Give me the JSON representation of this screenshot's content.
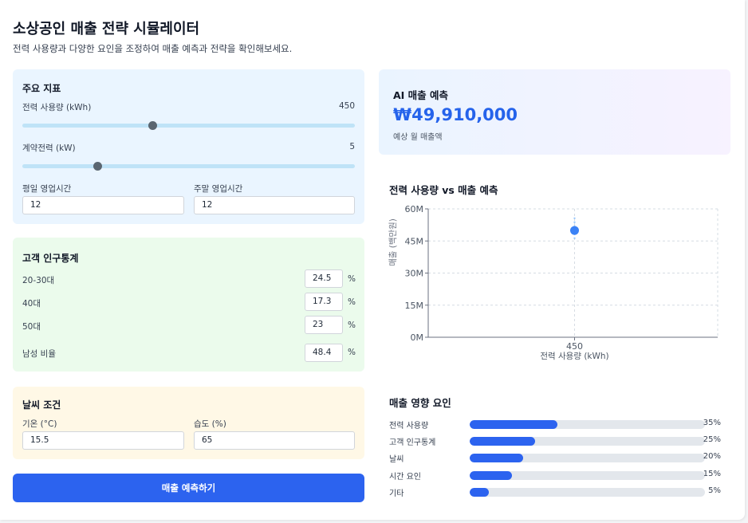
{
  "header": {
    "title": "소상공인 매출 전략 시뮬레이터",
    "subtitle": "전력 사용량과 다양한 요인을 조정하여 매출 예측과 전략을 확인해보세요."
  },
  "metrics": {
    "title": "주요 지표",
    "power_usage": {
      "label": "전력 사용량 (kWh)",
      "value": "450",
      "fraction": 0.39
    },
    "contract_power": {
      "label": "계약전력 (kW)",
      "value": "5",
      "fraction": 0.22
    },
    "weekday_hours": {
      "label": "평일 영업시간",
      "value": "12"
    },
    "weekend_hours": {
      "label": "주말 영업시간",
      "value": "12"
    }
  },
  "demographics": {
    "title": "고객 인구통계",
    "unit": "%",
    "rows": [
      {
        "label": "20-30대",
        "value": "24.5"
      },
      {
        "label": "40대",
        "value": "17.3"
      },
      {
        "label": "50대",
        "value": "23"
      },
      {
        "label": "남성 비율",
        "value": "48.4"
      }
    ]
  },
  "weather": {
    "title": "날씨 조건",
    "temperature": {
      "label": "기온 (°C)",
      "value": "15.5"
    },
    "humidity": {
      "label": "습도 (%)",
      "value": "65"
    }
  },
  "predict_button": "매출 예측하기",
  "ai": {
    "title": "AI 매출 예측",
    "value": "₩49,910,000",
    "subtitle": "예상 월 매출액"
  },
  "chart_data": {
    "type": "scatter",
    "title": "전력 사용량 vs 매출 예측",
    "xlabel": "전력 사용량 (kWh)",
    "ylabel": "매출 (백만원)",
    "x_ticks": [
      "450"
    ],
    "y_ticks": [
      "0M",
      "15M",
      "30M",
      "45M",
      "60M"
    ],
    "ylim": [
      0,
      60
    ],
    "grid": true,
    "points": [
      {
        "x": 450,
        "y": 49.91
      }
    ],
    "error_bar": {
      "low": 45,
      "high": 56
    },
    "point_color": "#3b82f6"
  },
  "factors": {
    "title": "매출 영향 요인",
    "items": [
      {
        "label": "전력 사용량",
        "value": 35,
        "pct": "35%"
      },
      {
        "label": "고객 인구통계",
        "value": 25,
        "pct": "25%"
      },
      {
        "label": "날씨",
        "value": 20,
        "pct": "20%"
      },
      {
        "label": "시간 요인",
        "value": 15,
        "pct": "15%"
      },
      {
        "label": "기타",
        "value": 5,
        "pct": "5%"
      }
    ]
  },
  "colors": {
    "accent": "#2c63ef",
    "ai_value": "#2563eb"
  }
}
